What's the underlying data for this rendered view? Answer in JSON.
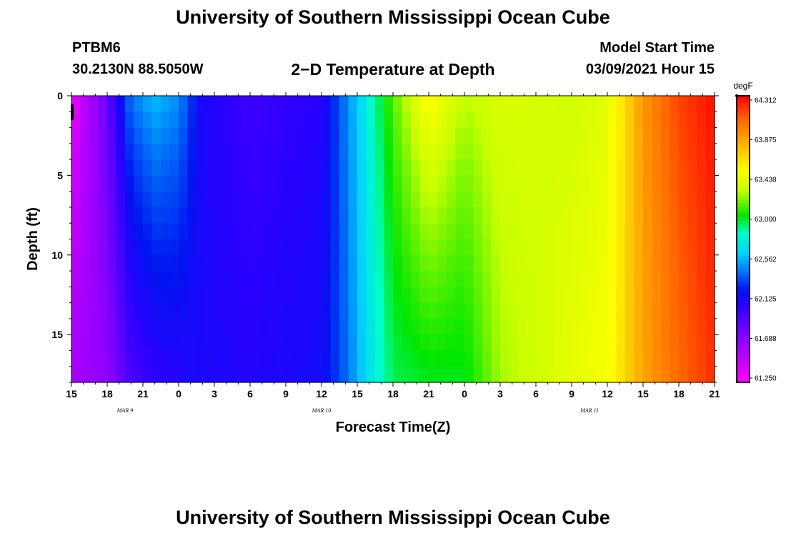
{
  "header": {
    "title": "University of Southern Mississippi Ocean Cube",
    "station": "PTBM6",
    "location": "30.2130N 88.5050W",
    "subtitle": "2−D Temperature at Depth",
    "model_label": "Model Start Time",
    "model_time": "03/09/2021 Hour 15"
  },
  "footer": {
    "title": "University of Southern Mississippi Ocean Cube"
  },
  "chart_data": {
    "type": "heatmap",
    "title": "2−D Temperature at Depth",
    "xlabel": "Forecast Time(Z)",
    "ylabel": "Depth (ft)",
    "x_tick_labels": [
      "15",
      "18",
      "21",
      "0",
      "3",
      "6",
      "9",
      "12",
      "15",
      "18",
      "21",
      "0",
      "3",
      "6",
      "9",
      "12",
      "15",
      "18",
      "21"
    ],
    "date_labels": [
      {
        "label": "MAR  9",
        "tick_index": 1.5
      },
      {
        "label": "MAR  10",
        "tick_index": 7
      },
      {
        "label": "MAR  11",
        "tick_index": 14.5
      }
    ],
    "xlim_hours": [
      0,
      54
    ],
    "y_ticks": [
      0,
      5,
      10,
      15
    ],
    "ylim": [
      0,
      18
    ],
    "colorbar": {
      "unit": "degF",
      "min": 61.25,
      "max": 64.312,
      "tick_labels": [
        "64.312",
        "63.875",
        "63.438",
        "63.000",
        "62.562",
        "62.125",
        "61.688",
        "61.250"
      ]
    },
    "profiles": [
      {
        "hour": 0,
        "top": 61.32,
        "bottom": 61.62
      },
      {
        "hour": 3,
        "top": 61.85,
        "bottom": 61.7
      },
      {
        "hour": 5,
        "top": 62.45,
        "bottom": 61.95
      },
      {
        "hour": 7,
        "top": 62.6,
        "bottom": 62.05
      },
      {
        "hour": 9,
        "top": 62.5,
        "bottom": 62.1
      },
      {
        "hour": 11,
        "top": 62.12,
        "bottom": 62.13
      },
      {
        "hour": 15,
        "top": 62.0,
        "bottom": 62.1
      },
      {
        "hour": 21,
        "top": 62.08,
        "bottom": 62.15
      },
      {
        "hour": 23,
        "top": 62.45,
        "bottom": 62.4
      },
      {
        "hour": 25,
        "top": 62.8,
        "bottom": 62.7
      },
      {
        "hour": 27,
        "top": 63.15,
        "bottom": 62.95
      },
      {
        "hour": 30,
        "top": 63.55,
        "bottom": 63.0
      },
      {
        "hour": 33,
        "top": 63.3,
        "bottom": 63.0
      },
      {
        "hour": 36,
        "top": 63.38,
        "bottom": 63.25
      },
      {
        "hour": 42,
        "top": 63.33,
        "bottom": 63.42
      },
      {
        "hour": 45,
        "top": 63.4,
        "bottom": 63.48
      },
      {
        "hour": 48,
        "top": 63.9,
        "bottom": 63.85
      },
      {
        "hour": 51,
        "top": 64.15,
        "bottom": 64.05
      },
      {
        "hour": 54,
        "top": 64.28,
        "bottom": 64.2
      }
    ]
  }
}
